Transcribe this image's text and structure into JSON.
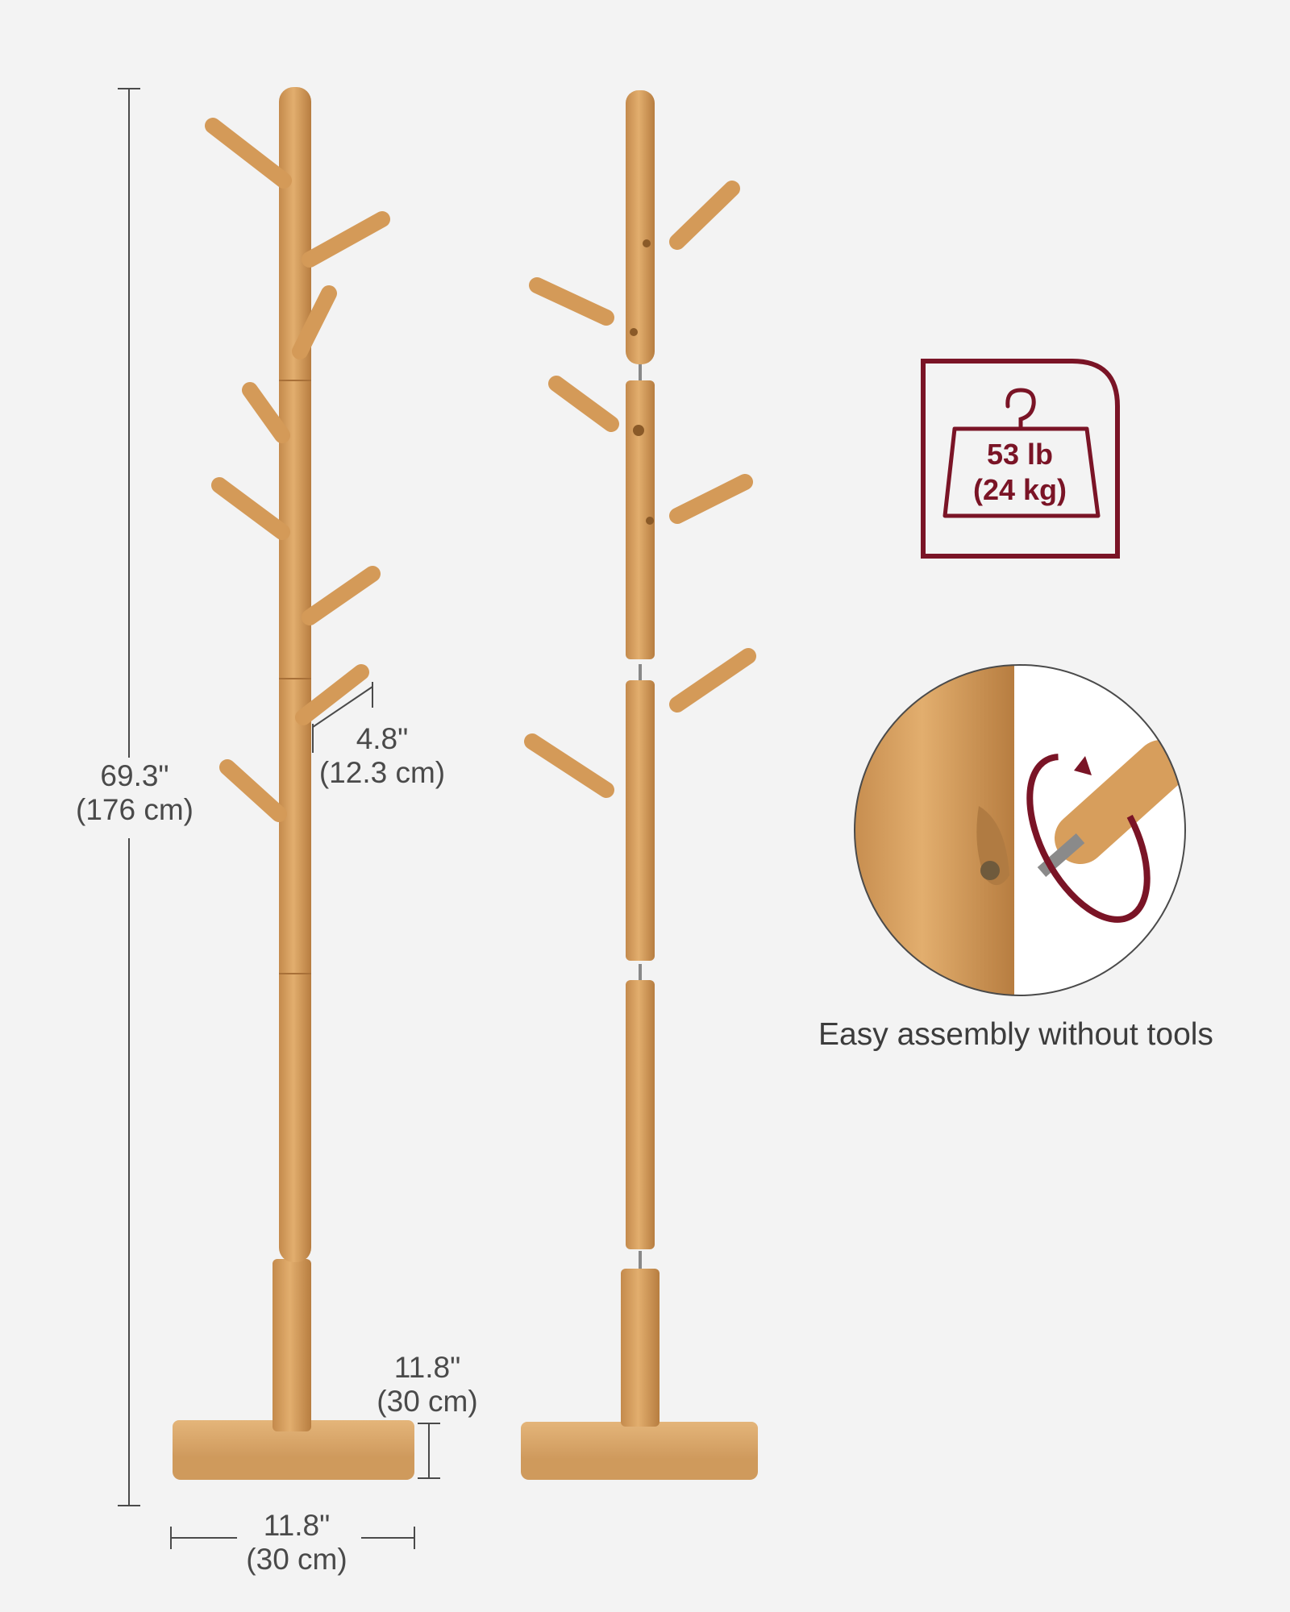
{
  "dimensions": {
    "height": {
      "imperial": "69.3\"",
      "metric": "(176 cm)"
    },
    "hook_length": {
      "imperial": "4.8\"",
      "metric": "(12.3 cm)"
    },
    "base_depth": {
      "imperial": "11.8\"",
      "metric": "(30 cm)"
    },
    "base_width": {
      "imperial": "11.8\"",
      "metric": "(30 cm)"
    }
  },
  "weight_badge": {
    "line1": "53 lb",
    "line2": "(24 kg)"
  },
  "assembly_caption": "Easy assembly without tools",
  "colors": {
    "wood": "#d8a262",
    "wood_dark": "#b98544",
    "badge": "#7a1426",
    "background": "#f3f3f3"
  }
}
